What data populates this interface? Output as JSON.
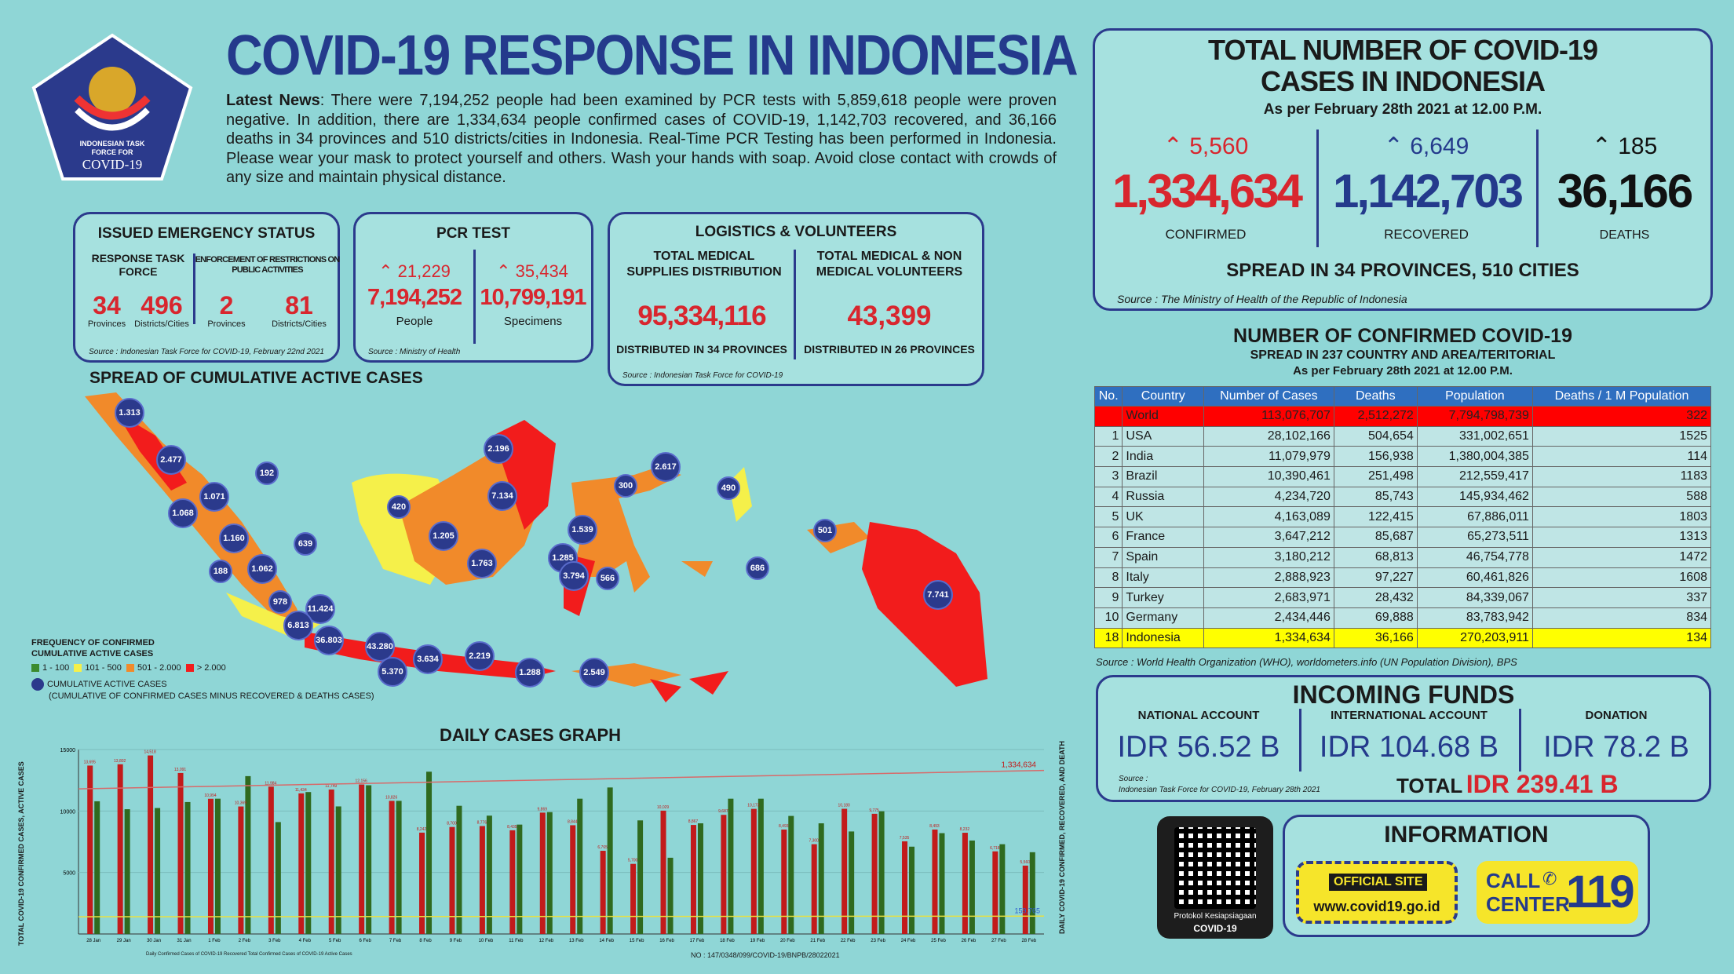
{
  "header": {
    "title": "COVID-19 RESPONSE IN INDONESIA",
    "logo_text": [
      "INDONESIAN TASK",
      "FORCE FOR",
      "COVID-19"
    ]
  },
  "news": {
    "label": "Latest News",
    "text": ": There were 7,194,252 people had been examined by PCR tests with 5,859,618 people were proven negative. In addition, there are 1,334,634 people confirmed cases of COVID-19, 1,142,703 recovered, and 36,166 deaths in 34 provinces and 510 districts/cities in Indonesia. Real-Time PCR Testing has been performed in Indonesia. Please wear your mask to protect yourself and others. Wash your hands with soap. Avoid close contact with crowds of any size and maintain physical distance."
  },
  "emergency": {
    "title": "ISSUED EMERGENCY STATUS",
    "col1_title": "RESPONSE TASK FORCE",
    "col2_title": "ENFORCEMENT OF RESTRICTIONS ON PUBLIC ACTIVITIES",
    "v1": "34",
    "l1": "Provinces",
    "v2": "496",
    "l2": "Districts/Cities",
    "v3": "2",
    "l3": "Provinces",
    "v4": "81",
    "l4": "Districts/Cities",
    "source": "Source : Indonesian Task Force for COVID-19, February 22nd 2021"
  },
  "pcr": {
    "title": "PCR TEST",
    "inc1": "21,229",
    "inc2": "35,434",
    "v1": "7,194,252",
    "l1": "People",
    "v2": "10,799,191",
    "l2": "Specimens",
    "source": "Source : Ministry of Health"
  },
  "logistics": {
    "title": "LOGISTICS & VOLUNTEERS",
    "col1_title": "TOTAL MEDICAL SUPPLIES DISTRIBUTION",
    "col2_title": "TOTAL MEDICAL & NON MEDICAL VOLUNTEERS",
    "v1": "95,334,116",
    "v2": "43,399",
    "l1": "DISTRIBUTED IN 34 PROVINCES",
    "l2": "DISTRIBUTED IN 26 PROVINCES",
    "source": "Source : Indonesian Task Force for COVID-19"
  },
  "totals": {
    "title1": "TOTAL NUMBER OF COVID-19",
    "title2": "CASES IN INDONESIA",
    "date": "As per February 28th 2021 at 12.00 P.M.",
    "inc_conf": "5,560",
    "inc_rec": "6,649",
    "inc_death": "185",
    "confirmed": "1,334,634",
    "recovered": "1,142,703",
    "deaths": "36,166",
    "l_conf": "CONFIRMED",
    "l_rec": "RECOVERED",
    "l_death": "DEATHS",
    "spread": "SPREAD IN 34 PROVINCES, 510 CITIES",
    "source": "Source : The Ministry of Health of the Republic of Indonesia"
  },
  "world": {
    "title": "NUMBER OF CONFIRMED COVID-19",
    "subtitle": "SPREAD IN 237 COUNTRY AND AREA/TERITORIAL",
    "date": "As per February 28th 2021 at 12.00 P.M.",
    "headers": [
      "No.",
      "Country",
      "Number of Cases",
      "Deaths",
      "Population",
      "Deaths / 1 M Population"
    ],
    "rows": [
      [
        "",
        "World",
        "113,076,707",
        "2,512,272",
        "7,794,798,739",
        "322"
      ],
      [
        "1",
        "USA",
        "28,102,166",
        "504,654",
        "331,002,651",
        "1525"
      ],
      [
        "2",
        "India",
        "11,079,979",
        "156,938",
        "1,380,004,385",
        "114"
      ],
      [
        "3",
        "Brazil",
        "10,390,461",
        "251,498",
        "212,559,417",
        "1183"
      ],
      [
        "4",
        "Russia",
        "4,234,720",
        "85,743",
        "145,934,462",
        "588"
      ],
      [
        "5",
        "UK",
        "4,163,089",
        "122,415",
        "67,886,011",
        "1803"
      ],
      [
        "6",
        "France",
        "3,647,212",
        "85,687",
        "65,273,511",
        "1313"
      ],
      [
        "7",
        "Spain",
        "3,180,212",
        "68,813",
        "46,754,778",
        "1472"
      ],
      [
        "8",
        "Italy",
        "2,888,923",
        "97,227",
        "60,461,826",
        "1608"
      ],
      [
        "9",
        "Turkey",
        "2,683,971",
        "28,432",
        "84,339,067",
        "337"
      ],
      [
        "10",
        "Germany",
        "2,434,446",
        "69,888",
        "83,783,942",
        "834"
      ],
      [
        "18",
        "Indonesia",
        "1,334,634",
        "36,166",
        "270,203,911",
        "134"
      ]
    ],
    "source": "Source : World Health Organization (WHO), worldometers.info (UN Population Division), BPS"
  },
  "funds": {
    "title": "INCOMING FUNDS",
    "l1": "NATIONAL ACCOUNT",
    "l2": "INTERNATIONAL ACCOUNT",
    "l3": "DONATION",
    "v1": "IDR 56.52 B",
    "v2": "IDR 104.68 B",
    "v3": "IDR 78.2 B",
    "total_label": "TOTAL",
    "total": "IDR 239.41 B",
    "source1": "Source :",
    "source2": "Indonesian Task Force for COVID-19, February 28th 2021"
  },
  "info": {
    "title": "INFORMATION",
    "qr_label1": "Protokol Kesiapsiagaan",
    "qr_label2": "COVID-19",
    "site_label": "OFFICIAL SITE",
    "site": "www.covid19.go.id",
    "call1": "CALL",
    "call2": "CENTER",
    "call_num": "119"
  },
  "map": {
    "title": "SPREAD OF CUMULATIVE ACTIVE CASES",
    "legend_title1": "FREQUENCY OF CONFIRMED",
    "legend_title2": "CUMULATIVE ACTIVE CASES",
    "legend": [
      "1 - 100",
      "101 - 500",
      "501 - 2.000",
      "> 2.000"
    ],
    "legend_colors": [
      "#3c8a2e",
      "#f5f04a",
      "#f18a2a",
      "#f21c1c"
    ],
    "bubble_label": "CUMULATIVE ACTIVE CASES",
    "bubble_note": "(CUMULATIVE OF CONFIRMED CASES MINUS RECOVERED & DEATHS CASES)",
    "bubbles": [
      "1.313",
      "2.477",
      "192",
      "1.071",
      "1.068",
      "1.160",
      "639",
      "188",
      "1.062",
      "978",
      "11.424",
      "6.813",
      "36.803",
      "43.280",
      "5.370",
      "3.634",
      "2.219",
      "1.288",
      "2.549",
      "420",
      "1.205",
      "1.763",
      "2.196",
      "7.134",
      "300",
      "2.617",
      "490",
      "1.539",
      "1.285",
      "3.794",
      "566",
      "686",
      "501",
      "7.741"
    ]
  },
  "graph": {
    "title": "DAILY CASES GRAPH",
    "y_left": "TOTAL COVID-19 CONFIRMED CASES, ACTIVE CASES",
    "y_right": "DAILY COVID-19 CONFIRMED, RECOVERED, AND DEATH",
    "yticks": [
      "15000",
      "10000",
      "5000"
    ],
    "max_label": "1,334,634",
    "min_label": "159,765",
    "legend": "Daily Confirmed Cases of COVID-19  Recovered  Total Confirmed Cases of COVID-19  Active Cases",
    "footer": "NO : 147/0348/099/COVID-19/BNPB/28022021",
    "dates": [
      "28 Jan",
      "29 Jan",
      "30 Jan",
      "31 Jan",
      "1 Feb",
      "2 Feb",
      "3 Feb",
      "4 Feb",
      "5 Feb",
      "6 Feb",
      "7 Feb",
      "8 Feb",
      "9 Feb",
      "10 Feb",
      "11 Feb",
      "12 Feb",
      "13 Feb",
      "14 Feb",
      "15 Feb",
      "16 Feb",
      "17 Feb",
      "18 Feb",
      "19 Feb",
      "20 Feb",
      "21 Feb",
      "22 Feb",
      "23 Feb",
      "24 Feb",
      "25 Feb",
      "26 Feb",
      "27 Feb",
      "28 Feb"
    ],
    "confirmed": [
      13695,
      13802,
      14518,
      13091,
      10994,
      10369,
      11984,
      11434,
      11749,
      12156,
      10826,
      8242,
      8700,
      8776,
      8435,
      9869,
      8844,
      6765,
      5700,
      10029,
      8867,
      9687,
      10173,
      8493,
      7300,
      10180,
      9775,
      7535,
      8493,
      8232,
      6718,
      5560
    ],
    "recovered": [
      10792,
      10146,
      10243,
      10729,
      11001,
      12837,
      9100,
      11541,
      10374,
      12094,
      10826,
      13198,
      10424,
      9623,
      8895,
      9910,
      11000,
      11914,
      9237,
      6200,
      9000,
      11000,
      11000,
      9600,
      9000,
      8336,
      9978,
      7100,
      8200,
      7600,
      7300,
      6649
    ]
  }
}
